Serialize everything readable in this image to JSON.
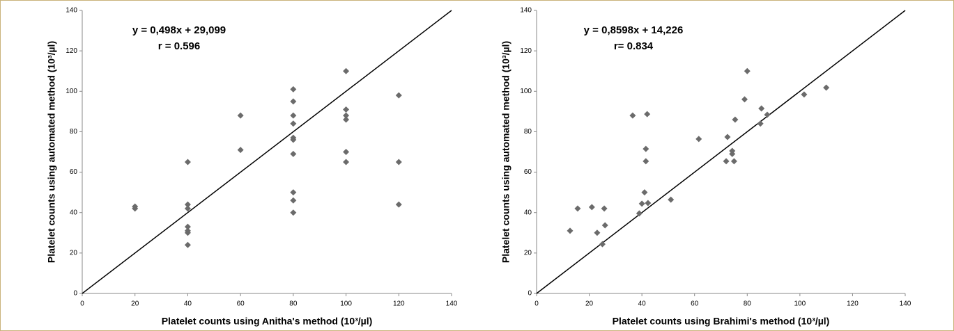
{
  "chart_data": [
    {
      "type": "scatter",
      "xlabel": "Platelet counts using Anitha's method (10³/µl)",
      "ylabel": "Platelet counts using automated method (10³/µl)",
      "annotations": [
        "y = 0,498x + 29,099",
        "r = 0.596"
      ],
      "xlim": [
        0,
        140
      ],
      "ylim": [
        0,
        140
      ],
      "xticks": [
        0,
        20,
        40,
        60,
        80,
        100,
        120,
        140
      ],
      "yticks": [
        0,
        20,
        40,
        60,
        80,
        100,
        120,
        140
      ],
      "series": [
        {
          "color": "#6b6b6b",
          "x": [
            20,
            20,
            40,
            40,
            40,
            40,
            40,
            40,
            40,
            60,
            60,
            80,
            80,
            80,
            80,
            80,
            80,
            80,
            80,
            80,
            80,
            100,
            100,
            100,
            100,
            100,
            100,
            120,
            120,
            120
          ],
          "values": [
            42,
            43,
            65,
            44,
            42,
            33,
            31,
            30,
            24,
            88,
            71,
            101,
            95,
            88,
            84,
            77,
            76,
            69,
            50,
            46,
            40,
            110,
            91,
            88,
            86,
            70,
            65,
            98,
            65,
            44
          ]
        }
      ]
    },
    {
      "type": "scatter",
      "xlabel": "Platelet counts using Brahimi's method (10³/µl)",
      "ylabel": "Platelet counts using automated method (10³/µl)",
      "annotations": [
        "y = 0,8598x + 14,226",
        "r= 0.834"
      ],
      "xlim": [
        0,
        140
      ],
      "ylim": [
        0,
        140
      ],
      "xticks": [
        0,
        20,
        40,
        60,
        80,
        100,
        120,
        140
      ],
      "yticks": [
        0,
        20,
        40,
        60,
        80,
        100,
        120,
        140
      ],
      "series": [
        {
          "color": "#6b6b6b",
          "x": [
            12.7,
            15.6,
            21,
            25.7,
            26,
            23,
            25,
            36.5,
            42,
            41.5,
            41.5,
            39,
            40,
            41,
            42.3,
            51,
            61.6,
            72.5,
            72,
            74.3,
            74.3,
            75,
            75.4,
            79,
            80,
            85,
            85.4,
            87.6,
            101.6,
            110
          ],
          "values": [
            31,
            42,
            42.7,
            42,
            33.7,
            30,
            24.4,
            88,
            88.7,
            71.5,
            65.4,
            39.6,
            44.4,
            50,
            44.7,
            46.4,
            76.4,
            77.4,
            65.4,
            70.5,
            69,
            65.4,
            86,
            96,
            110,
            84,
            91.5,
            88.4,
            98.4,
            101.8
          ]
        }
      ]
    }
  ]
}
